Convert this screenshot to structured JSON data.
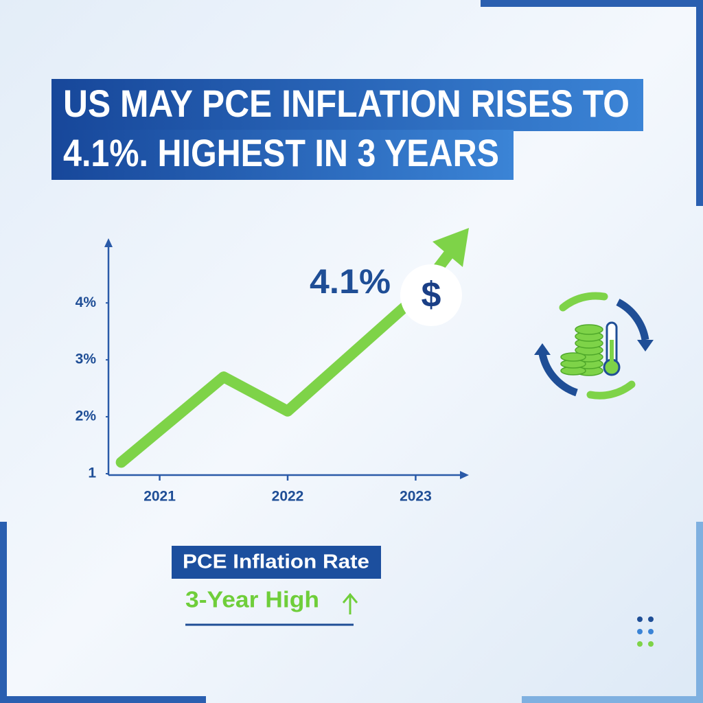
{
  "headline": {
    "lines": [
      "US MAY PCE INFLATION RISES TO",
      "4.1%. HIGHEST IN 3 YEARS"
    ]
  },
  "chart_data": {
    "type": "line",
    "x": [
      2020.7,
      2021.5,
      2022.0,
      2023.0
    ],
    "series": [
      {
        "name": "PCE Inflation Rate",
        "color": "#7ed348",
        "values": [
          1.2,
          2.7,
          2.1,
          4.1
        ]
      }
    ],
    "xlim": [
      2020.6,
      2023.4
    ],
    "xticks": [
      2021,
      2022,
      2023
    ],
    "ylim": [
      1,
      5.1
    ],
    "yticks": [
      1,
      {
        "value": 2,
        "label": "2%"
      },
      {
        "value": 3,
        "label": "3%"
      },
      {
        "value": 4,
        "label": "4%"
      }
    ],
    "annotations": {
      "peak": "4.1%",
      "badge": "$",
      "note": "3-Year High"
    }
  }
}
